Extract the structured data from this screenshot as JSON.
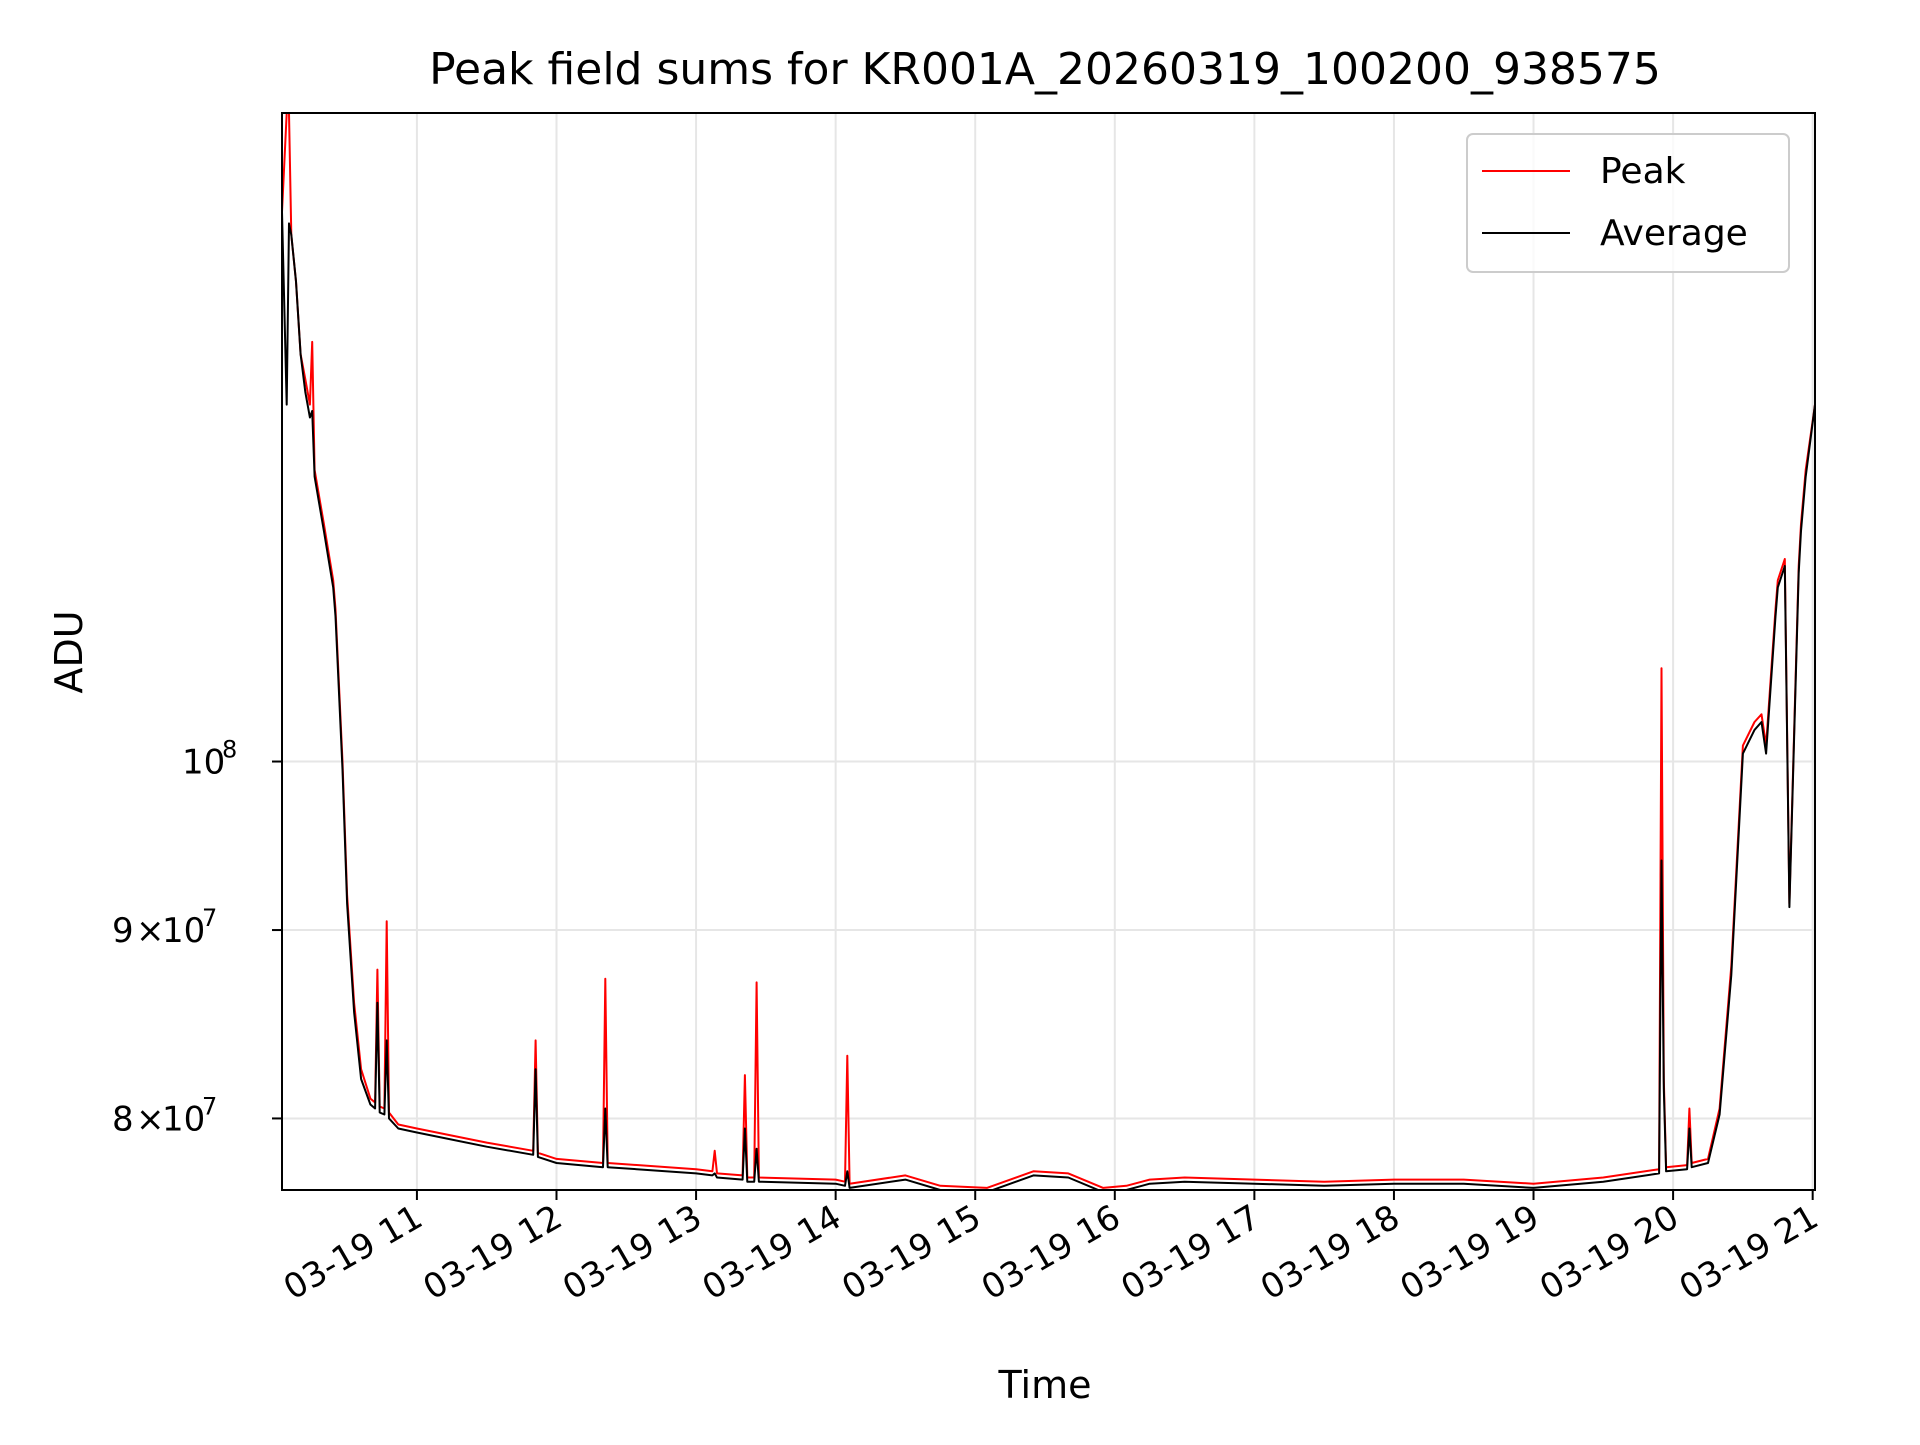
{
  "chart_data": {
    "type": "line",
    "title": "Peak field sums for KR001A_20260319_100200_938575",
    "xlabel": "Time",
    "ylabel": "ADU",
    "y_scale": "log",
    "ylim": [
      76500000,
      150000000
    ],
    "xlim": [
      "2026-03-19 10:02",
      "2026-03-19 21:01"
    ],
    "grid": true,
    "legend_position": "top-right",
    "x_ticks": [
      "03-19 11",
      "03-19 12",
      "03-19 13",
      "03-19 14",
      "03-19 15",
      "03-19 16",
      "03-19 17",
      "03-19 18",
      "03-19 19",
      "03-19 20",
      "03-19 21"
    ],
    "y_ticks": [
      {
        "value": 80000000,
        "mantissa": "8",
        "exp": "7"
      },
      {
        "value": 90000000,
        "mantissa": "9",
        "exp": "7"
      },
      {
        "value": 100000000,
        "mantissa": "",
        "exp": "8"
      }
    ],
    "series": [
      {
        "name": "Peak",
        "color": "#ff0000",
        "x": [
          "2026-03-19 10:02",
          "2026-03-19 10:04",
          "2026-03-19 10:05",
          "2026-03-19 10:06",
          "2026-03-19 10:08",
          "2026-03-19 10:10",
          "2026-03-19 10:12",
          "2026-03-19 10:14",
          "2026-03-19 10:15",
          "2026-03-19 10:16",
          "2026-03-19 10:18",
          "2026-03-19 10:20",
          "2026-03-19 10:22",
          "2026-03-19 10:24",
          "2026-03-19 10:25",
          "2026-03-19 10:28",
          "2026-03-19 10:30",
          "2026-03-19 10:33",
          "2026-03-19 10:36",
          "2026-03-19 10:40",
          "2026-03-19 10:42",
          "2026-03-19 10:43",
          "2026-03-19 10:44",
          "2026-03-19 10:46",
          "2026-03-19 10:47",
          "2026-03-19 10:48",
          "2026-03-19 10:52",
          "2026-03-19 11:00",
          "2026-03-19 11:30",
          "2026-03-19 11:50",
          "2026-03-19 11:51",
          "2026-03-19 11:52",
          "2026-03-19 12:00",
          "2026-03-19 12:20",
          "2026-03-19 12:21",
          "2026-03-19 12:22",
          "2026-03-19 13:00",
          "2026-03-19 13:07",
          "2026-03-19 13:08",
          "2026-03-19 13:09",
          "2026-03-19 13:20",
          "2026-03-19 13:21",
          "2026-03-19 13:22",
          "2026-03-19 13:25",
          "2026-03-19 13:26",
          "2026-03-19 13:27",
          "2026-03-19 14:00",
          "2026-03-19 14:04",
          "2026-03-19 14:05",
          "2026-03-19 14:06",
          "2026-03-19 14:30",
          "2026-03-19 14:45",
          "2026-03-19 15:05",
          "2026-03-19 15:25",
          "2026-03-19 15:40",
          "2026-03-19 15:55",
          "2026-03-19 16:05",
          "2026-03-19 16:15",
          "2026-03-19 16:30",
          "2026-03-19 17:00",
          "2026-03-19 17:30",
          "2026-03-19 18:00",
          "2026-03-19 18:30",
          "2026-03-19 19:00",
          "2026-03-19 19:30",
          "2026-03-19 19:54",
          "2026-03-19 19:55",
          "2026-03-19 19:56",
          "2026-03-19 19:57",
          "2026-03-19 20:06",
          "2026-03-19 20:07",
          "2026-03-19 20:08",
          "2026-03-19 20:15",
          "2026-03-19 20:20",
          "2026-03-19 20:25",
          "2026-03-19 20:30",
          "2026-03-19 20:35",
          "2026-03-19 20:38",
          "2026-03-19 20:40",
          "2026-03-19 20:44",
          "2026-03-19 20:45",
          "2026-03-19 20:48",
          "2026-03-19 20:50",
          "2026-03-19 20:54",
          "2026-03-19 20:55",
          "2026-03-19 20:57",
          "2026-03-19 21:01"
        ],
        "values": [
          141000000,
          150000000,
          150000000,
          139000000,
          135000000,
          129000000,
          127000000,
          125000000,
          130000000,
          120000000,
          118000000,
          116000000,
          114000000,
          112000000,
          110000000,
          100000000,
          92000000,
          86000000,
          82500000,
          81000000,
          80800000,
          87800000,
          80600000,
          80500000,
          90500000,
          80300000,
          79700000,
          79500000,
          78800000,
          78400000,
          84000000,
          78300000,
          78000000,
          77800000,
          87300000,
          77800000,
          77500000,
          77400000,
          78400000,
          77300000,
          77200000,
          82200000,
          77100000,
          77100000,
          87100000,
          77100000,
          77000000,
          76900000,
          83200000,
          76800000,
          77200000,
          76700000,
          76600000,
          77400000,
          77300000,
          76600000,
          76700000,
          77000000,
          77100000,
          77000000,
          76900000,
          77000000,
          77000000,
          76800000,
          77100000,
          77500000,
          106000000,
          82000000,
          77600000,
          77700000,
          80500000,
          77800000,
          78000000,
          80500000,
          88000000,
          101000000,
          102500000,
          103000000,
          101000000,
          110000000,
          112000000,
          113500000,
          91500000,
          113000000,
          116000000,
          120000000,
          125000000
        ]
      },
      {
        "name": "Average",
        "color": "#000000",
        "x": [
          "2026-03-19 10:02",
          "2026-03-19 10:04",
          "2026-03-19 10:05",
          "2026-03-19 10:06",
          "2026-03-19 10:08",
          "2026-03-19 10:10",
          "2026-03-19 10:12",
          "2026-03-19 10:14",
          "2026-03-19 10:15",
          "2026-03-19 10:16",
          "2026-03-19 10:18",
          "2026-03-19 10:20",
          "2026-03-19 10:22",
          "2026-03-19 10:24",
          "2026-03-19 10:25",
          "2026-03-19 10:28",
          "2026-03-19 10:30",
          "2026-03-19 10:33",
          "2026-03-19 10:36",
          "2026-03-19 10:40",
          "2026-03-19 10:42",
          "2026-03-19 10:43",
          "2026-03-19 10:44",
          "2026-03-19 10:46",
          "2026-03-19 10:47",
          "2026-03-19 10:48",
          "2026-03-19 10:52",
          "2026-03-19 11:00",
          "2026-03-19 11:30",
          "2026-03-19 11:50",
          "2026-03-19 11:51",
          "2026-03-19 11:52",
          "2026-03-19 12:00",
          "2026-03-19 12:20",
          "2026-03-19 12:21",
          "2026-03-19 12:22",
          "2026-03-19 13:00",
          "2026-03-19 13:07",
          "2026-03-19 13:08",
          "2026-03-19 13:09",
          "2026-03-19 13:20",
          "2026-03-19 13:21",
          "2026-03-19 13:22",
          "2026-03-19 13:25",
          "2026-03-19 13:26",
          "2026-03-19 13:27",
          "2026-03-19 14:00",
          "2026-03-19 14:04",
          "2026-03-19 14:05",
          "2026-03-19 14:06",
          "2026-03-19 14:30",
          "2026-03-19 14:45",
          "2026-03-19 15:05",
          "2026-03-19 15:25",
          "2026-03-19 15:40",
          "2026-03-19 15:55",
          "2026-03-19 16:05",
          "2026-03-19 16:15",
          "2026-03-19 16:30",
          "2026-03-19 17:00",
          "2026-03-19 17:30",
          "2026-03-19 18:00",
          "2026-03-19 18:30",
          "2026-03-19 19:00",
          "2026-03-19 19:30",
          "2026-03-19 19:54",
          "2026-03-19 19:55",
          "2026-03-19 19:56",
          "2026-03-19 19:57",
          "2026-03-19 20:06",
          "2026-03-19 20:07",
          "2026-03-19 20:08",
          "2026-03-19 20:15",
          "2026-03-19 20:20",
          "2026-03-19 20:25",
          "2026-03-19 20:30",
          "2026-03-19 20:35",
          "2026-03-19 20:38",
          "2026-03-19 20:40",
          "2026-03-19 20:44",
          "2026-03-19 20:45",
          "2026-03-19 20:48",
          "2026-03-19 20:50",
          "2026-03-19 20:54",
          "2026-03-19 20:55",
          "2026-03-19 20:57",
          "2026-03-19 21:01"
        ],
        "values": [
          141000000,
          125000000,
          140000000,
          139000000,
          135000000,
          129000000,
          126000000,
          124000000,
          124500000,
          119500000,
          117500000,
          115500000,
          113500000,
          111500000,
          109500000,
          99500000,
          91500000,
          85500000,
          82000000,
          80700000,
          80500000,
          86000000,
          80300000,
          80200000,
          84000000,
          80000000,
          79500000,
          79300000,
          78600000,
          78200000,
          82500000,
          78100000,
          77800000,
          77600000,
          80500000,
          77600000,
          77300000,
          77200000,
          77300000,
          77100000,
          77000000,
          79500000,
          76900000,
          76900000,
          78500000,
          76900000,
          76800000,
          76700000,
          77400000,
          76600000,
          77000000,
          76500000,
          76400000,
          77200000,
          77100000,
          76400000,
          76500000,
          76800000,
          76900000,
          76800000,
          76700000,
          76800000,
          76800000,
          76600000,
          76900000,
          77300000,
          94000000,
          81500000,
          77400000,
          77500000,
          79500000,
          77600000,
          77800000,
          80200000,
          87500000,
          100500000,
          102000000,
          102500000,
          100500000,
          109500000,
          111500000,
          113000000,
          91300000,
          112500000,
          115500000,
          119500000,
          125000000
        ]
      }
    ]
  }
}
